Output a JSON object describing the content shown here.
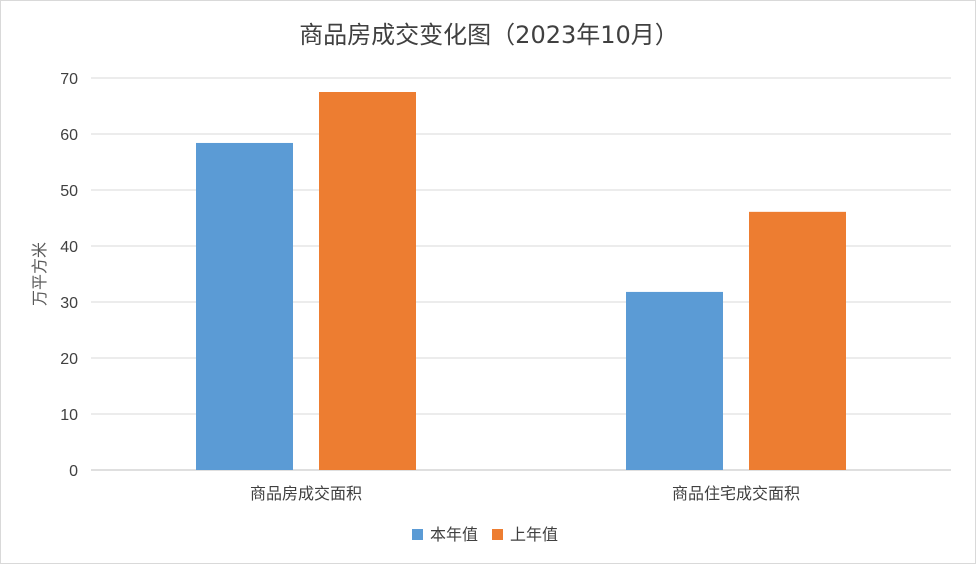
{
  "chart_data": {
    "type": "bar",
    "title": "商品房成交变化图（2023年10月）",
    "ylabel": "万平方米",
    "xlabel": "",
    "categories": [
      "商品房成交面积",
      "商品住宅成交面积"
    ],
    "series": [
      {
        "name": "本年值",
        "values": [
          58.4,
          31.8
        ],
        "color": "#5b9bd5"
      },
      {
        "name": "上年值",
        "values": [
          67.5,
          46.1
        ],
        "color": "#ed7d31"
      }
    ],
    "ylim": [
      0,
      70
    ],
    "yticks": [
      "0",
      "10",
      "20",
      "30",
      "40",
      "50",
      "60",
      "70"
    ],
    "grid": true,
    "legend_position": "bottom"
  }
}
